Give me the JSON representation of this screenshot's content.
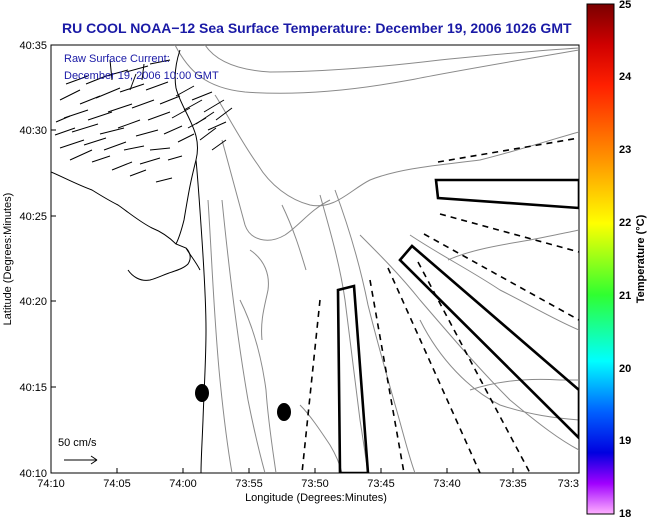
{
  "title": "RU COOL  NOAA−12  Sea Surface Temperature:  December 19, 2006 1026 GMT",
  "overlay": {
    "line1": "Raw Surface Current:",
    "line2": "December 19, 2006 10:00 GMT"
  },
  "x_axis": {
    "label": "Longitude (Degrees:Minutes)",
    "ticks": [
      "74:10",
      "74:05",
      "74:00",
      "73:55",
      "73:50",
      "73:45",
      "73:40",
      "73:35",
      "73:3"
    ]
  },
  "y_axis": {
    "label": "Latitude (Degrees:Minutes)",
    "ticks": [
      "40:35",
      "40:30",
      "40:25",
      "40:20",
      "40:15",
      "40:10"
    ]
  },
  "colorbar": {
    "label": "Temperature (°C)",
    "ticks": [
      "25",
      "24",
      "23",
      "22",
      "21",
      "20",
      "19",
      "18"
    ],
    "colors": [
      "#7a0000",
      "#ff0000",
      "#ff8000",
      "#ffff00",
      "#00ff00",
      "#00ffff",
      "#0080ff",
      "#0000ff",
      "#ff00ff",
      "#ffb0ff"
    ]
  },
  "scale": {
    "label": "50 cm/s"
  },
  "colors": {
    "title": "#1a1aa6",
    "contour": "#888888",
    "shoreline": "#000000",
    "marker": "#000000"
  }
}
